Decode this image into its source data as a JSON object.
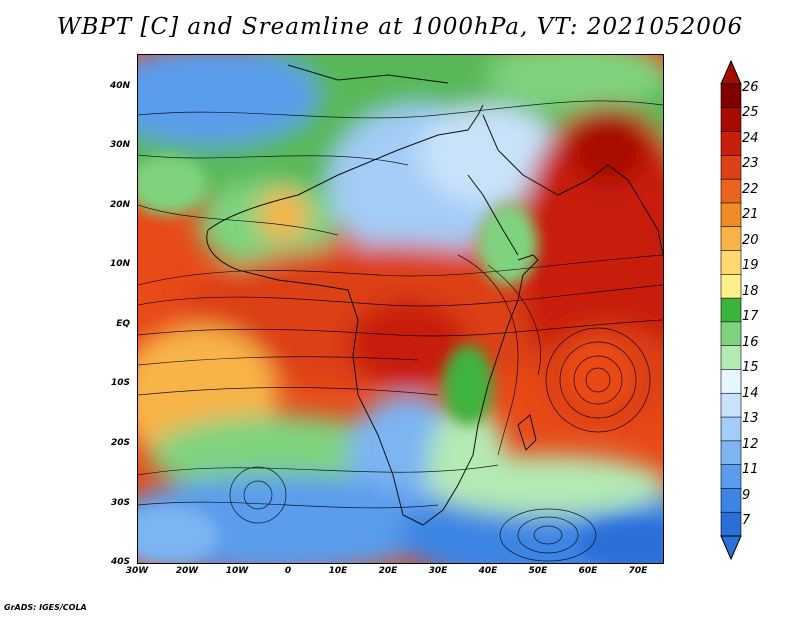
{
  "title": "WBPT [C] and Sreamline at 1000hPa, VT: 2021052006",
  "credit": "GrADS: IGES/COLA",
  "map": {
    "lat_labels": [
      "40N",
      "30N",
      "20N",
      "10N",
      "EQ",
      "10S",
      "20S",
      "30S",
      "40S"
    ],
    "lon_labels": [
      "30W",
      "20W",
      "10W",
      "0",
      "10E",
      "20E",
      "30E",
      "40E",
      "50E",
      "60E",
      "70E"
    ]
  },
  "colorbar": {
    "labels": [
      "7",
      "9",
      "11",
      "12",
      "13",
      "14",
      "15",
      "16",
      "17",
      "18",
      "19",
      "20",
      "21",
      "22",
      "23",
      "24",
      "25",
      "26"
    ],
    "colors": [
      "#2a6fd8",
      "#3d85e4",
      "#5a9dec",
      "#7db4f2",
      "#a3ccf6",
      "#c8e2fa",
      "#e8f6ff",
      "#b4eab4",
      "#7fd37f",
      "#3cb43c",
      "#fff08c",
      "#ffd870",
      "#f8b448",
      "#f08c28",
      "#ea6420",
      "#dc4016",
      "#c81e0c",
      "#a80a00",
      "#800000"
    ]
  }
}
